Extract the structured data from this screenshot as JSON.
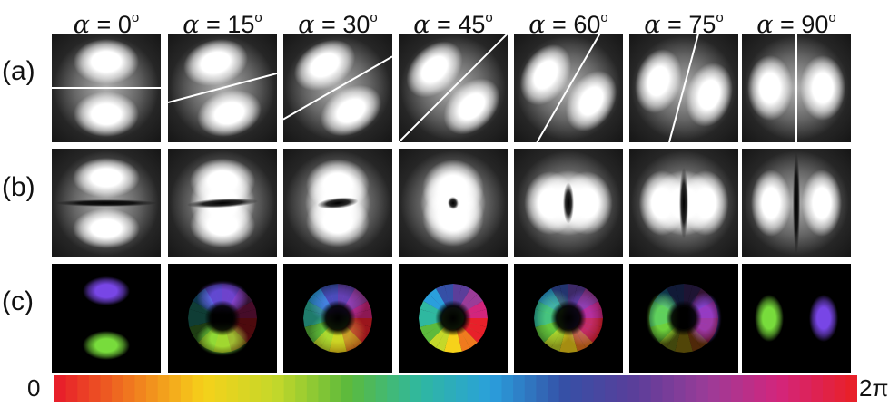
{
  "columns": [
    {
      "symbol": "α",
      "eq": " = ",
      "value": "0",
      "unit": "o"
    },
    {
      "symbol": "α",
      "eq": " = ",
      "value": "15",
      "unit": "o"
    },
    {
      "symbol": "α",
      "eq": " = ",
      "value": "30",
      "unit": "o"
    },
    {
      "symbol": "α",
      "eq": " = ",
      "value": "45",
      "unit": "o"
    },
    {
      "symbol": "α",
      "eq": " = ",
      "value": "60",
      "unit": "o"
    },
    {
      "symbol": "α",
      "eq": " = ",
      "value": "75",
      "unit": "o"
    },
    {
      "symbol": "α",
      "eq": " = ",
      "value": "90",
      "unit": "o"
    }
  ],
  "rows": [
    {
      "label": "(a)",
      "kind": "intensity-with-cut-line"
    },
    {
      "label": "(b)",
      "kind": "intensity"
    },
    {
      "label": "(c)",
      "kind": "phase-colored"
    }
  ],
  "colorbar": {
    "min_label": "0",
    "max_label": "2π",
    "colors": [
      "#e8202a",
      "#f07a1e",
      "#f6d21a",
      "#c4d82a",
      "#5cba3c",
      "#2fb8a0",
      "#2a9fdc",
      "#3550a6",
      "#5b3e9a",
      "#9b3c98",
      "#d3257c",
      "#e8202a"
    ]
  }
}
